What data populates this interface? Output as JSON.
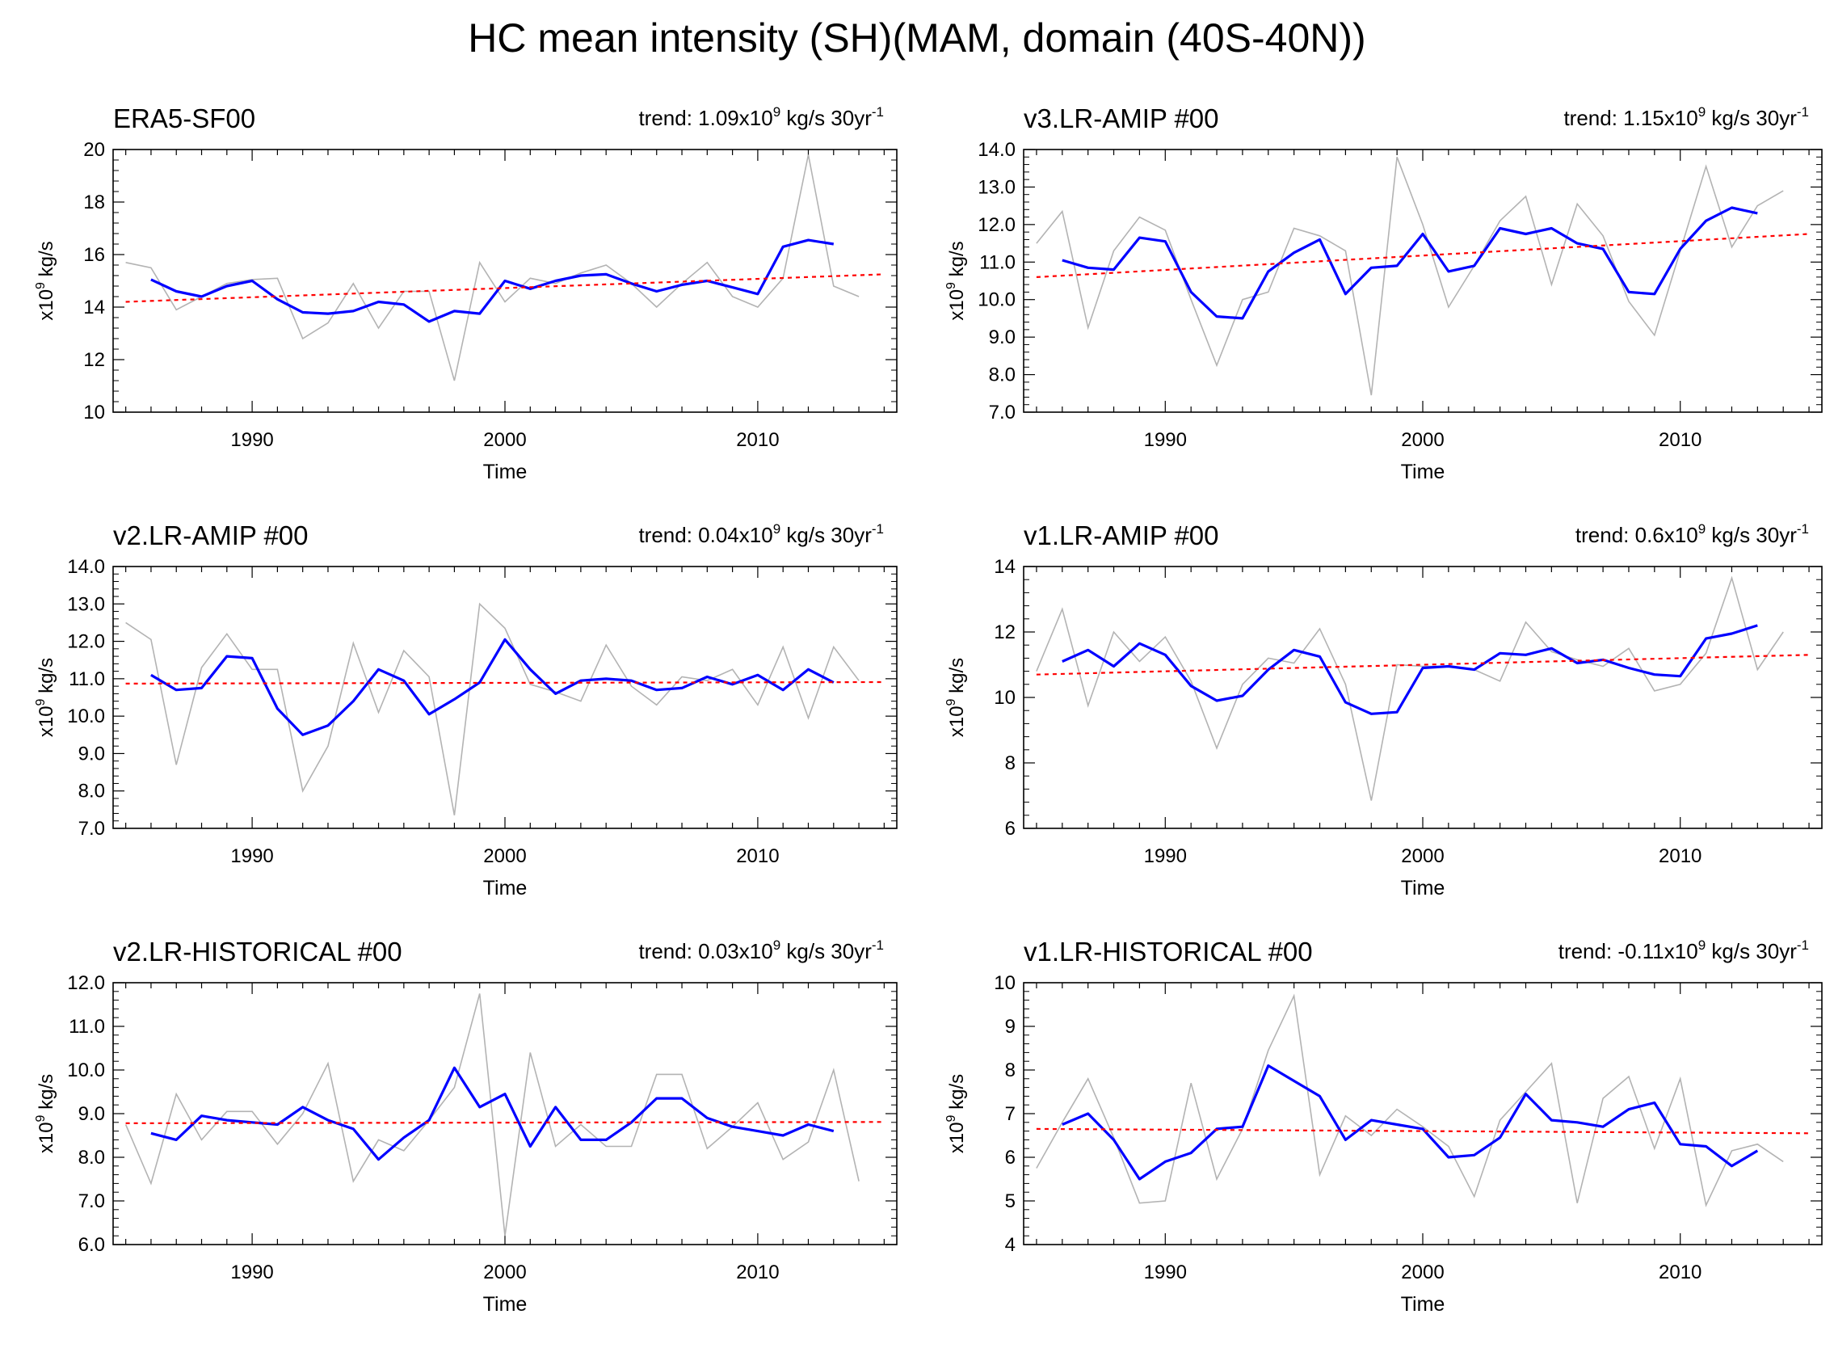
{
  "figure": {
    "title": "HC mean intensity (SH)(MAM, domain (40S-40N))",
    "colors": {
      "raw": "#b3b3b3",
      "smooth": "#0000ff",
      "trend": "#ff0000",
      "axis": "#000000"
    }
  },
  "chart_data": [
    {
      "type": "line",
      "title": "ERA5-SF00",
      "trend_label": "trend: 1.09x10^9 kg/s 30yr^-1",
      "trend_prefix": "trend: 1.09x10",
      "trend_suffix": " kg/s 30yr",
      "xlabel": "Time",
      "ylabel": "x10^9 kg/s",
      "xlim": [
        1984.5,
        2015.5
      ],
      "ylim": [
        10,
        20
      ],
      "x_ticks": [
        1990,
        2000,
        2010
      ],
      "y_ticks": [
        "10",
        "12",
        "14",
        "16",
        "18",
        "20"
      ],
      "series": [
        {
          "name": "raw",
          "x": [
            1985,
            1986,
            1987,
            1988,
            1989,
            1990,
            1991,
            1992,
            1993,
            1994,
            1995,
            1996,
            1997,
            1998,
            1999,
            2000,
            2001,
            2002,
            2003,
            2004,
            2005,
            2006,
            2007,
            2008,
            2009,
            2010,
            2011,
            2012,
            2013,
            2014,
            2015
          ],
          "values": [
            15.7,
            15.5,
            13.9,
            14.4,
            14.9,
            15.05,
            15.1,
            12.8,
            13.4,
            14.9,
            13.2,
            14.6,
            14.6,
            11.2,
            15.7,
            14.2,
            15.1,
            14.9,
            15.3,
            15.6,
            14.9,
            14.0,
            14.9,
            15.7,
            14.4,
            14.0,
            15.1,
            19.8,
            14.8,
            14.4,
            null
          ]
        },
        {
          "name": "smoothed",
          "x": [
            1986,
            1987,
            1988,
            1989,
            1990,
            1991,
            1992,
            1993,
            1994,
            1995,
            1996,
            1997,
            1998,
            1999,
            2000,
            2001,
            2002,
            2003,
            2004,
            2005,
            2006,
            2007,
            2008,
            2009,
            2010,
            2011,
            2012,
            2013,
            2014
          ],
          "values": [
            15.05,
            14.6,
            14.4,
            14.8,
            15.0,
            14.3,
            13.8,
            13.75,
            13.85,
            14.2,
            14.1,
            13.45,
            13.85,
            13.75,
            15.0,
            14.7,
            15.0,
            15.2,
            15.25,
            14.9,
            14.6,
            14.85,
            15.0,
            14.75,
            14.5,
            16.3,
            16.55,
            16.4,
            null
          ]
        },
        {
          "name": "trend",
          "x": [
            1985,
            2015
          ],
          "values": [
            14.2,
            15.25
          ]
        }
      ]
    },
    {
      "type": "line",
      "title": "v3.LR-AMIP  #00",
      "trend_label": "trend: 1.15x10^9 kg/s 30yr^-1",
      "trend_prefix": "trend: 1.15x10",
      "trend_suffix": " kg/s 30yr",
      "xlabel": "Time",
      "ylabel": "x10^9 kg/s",
      "xlim": [
        1984.5,
        2015.5
      ],
      "ylim": [
        7.0,
        14.0
      ],
      "x_ticks": [
        1990,
        2000,
        2010
      ],
      "y_ticks": [
        "7.0",
        "8.0",
        "9.0",
        "10.0",
        "11.0",
        "12.0",
        "13.0",
        "14.0"
      ],
      "series": [
        {
          "name": "raw",
          "x": [
            1985,
            1986,
            1987,
            1988,
            1989,
            1990,
            1991,
            1992,
            1993,
            1994,
            1995,
            1996,
            1997,
            1998,
            1999,
            2000,
            2001,
            2002,
            2003,
            2004,
            2005,
            2006,
            2007,
            2008,
            2009,
            2010,
            2011,
            2012,
            2013,
            2014,
            2015
          ],
          "values": [
            11.5,
            12.35,
            9.25,
            11.3,
            12.2,
            11.85,
            10.0,
            8.25,
            10.0,
            10.2,
            11.9,
            11.7,
            11.3,
            7.45,
            13.8,
            12.0,
            9.8,
            10.9,
            12.1,
            12.75,
            10.4,
            12.55,
            11.7,
            9.95,
            9.05,
            11.3,
            13.55,
            11.4,
            12.5,
            12.9,
            null
          ]
        },
        {
          "name": "smoothed",
          "x": [
            1986,
            1987,
            1988,
            1989,
            1990,
            1991,
            1992,
            1993,
            1994,
            1995,
            1996,
            1997,
            1998,
            1999,
            2000,
            2001,
            2002,
            2003,
            2004,
            2005,
            2006,
            2007,
            2008,
            2009,
            2010,
            2011,
            2012,
            2013,
            2014
          ],
          "values": [
            11.05,
            10.85,
            10.8,
            11.65,
            11.55,
            10.2,
            9.55,
            9.5,
            10.75,
            11.25,
            11.6,
            10.15,
            10.85,
            10.9,
            11.75,
            10.75,
            10.9,
            11.9,
            11.75,
            11.9,
            11.5,
            11.35,
            10.2,
            10.15,
            11.35,
            12.1,
            12.45,
            12.3,
            null
          ]
        },
        {
          "name": "trend",
          "x": [
            1985,
            2015
          ],
          "values": [
            10.6,
            11.75
          ]
        }
      ]
    },
    {
      "type": "line",
      "title": "v2.LR-AMIP  #00",
      "trend_label": "trend: 0.04x10^9 kg/s 30yr^-1",
      "trend_prefix": "trend: 0.04x10",
      "trend_suffix": " kg/s 30yr",
      "xlabel": "Time",
      "ylabel": "x10^9 kg/s",
      "xlim": [
        1984.5,
        2015.5
      ],
      "ylim": [
        7.0,
        14.0
      ],
      "x_ticks": [
        1990,
        2000,
        2010
      ],
      "y_ticks": [
        "7.0",
        "8.0",
        "9.0",
        "10.0",
        "11.0",
        "12.0",
        "13.0",
        "14.0"
      ],
      "series": [
        {
          "name": "raw",
          "x": [
            1985,
            1986,
            1987,
            1988,
            1989,
            1990,
            1991,
            1992,
            1993,
            1994,
            1995,
            1996,
            1997,
            1998,
            1999,
            2000,
            2001,
            2002,
            2003,
            2004,
            2005,
            2006,
            2007,
            2008,
            2009,
            2010,
            2011,
            2012,
            2013,
            2014,
            2015
          ],
          "values": [
            12.5,
            12.05,
            8.7,
            11.3,
            12.2,
            11.25,
            11.25,
            8.0,
            9.2,
            11.95,
            10.1,
            11.75,
            11.05,
            7.35,
            13.0,
            12.35,
            10.85,
            10.65,
            10.4,
            11.9,
            10.8,
            10.3,
            11.05,
            10.95,
            11.25,
            10.3,
            11.85,
            9.95,
            11.85,
            10.95,
            null
          ]
        },
        {
          "name": "smoothed",
          "x": [
            1986,
            1987,
            1988,
            1989,
            1990,
            1991,
            1992,
            1993,
            1994,
            1995,
            1996,
            1997,
            1998,
            1999,
            2000,
            2001,
            2002,
            2003,
            2004,
            2005,
            2006,
            2007,
            2008,
            2009,
            2010,
            2011,
            2012,
            2013,
            2014
          ],
          "values": [
            11.1,
            10.7,
            10.75,
            11.6,
            11.55,
            10.2,
            9.5,
            9.75,
            10.4,
            11.25,
            10.95,
            10.05,
            10.45,
            10.9,
            12.05,
            11.25,
            10.6,
            10.95,
            11.0,
            10.95,
            10.7,
            10.75,
            11.05,
            10.85,
            11.1,
            10.7,
            11.25,
            10.9,
            null
          ]
        },
        {
          "name": "trend",
          "x": [
            1985,
            2015
          ],
          "values": [
            10.87,
            10.91
          ]
        }
      ]
    },
    {
      "type": "line",
      "title": "v1.LR-AMIP  #00",
      "trend_label": "trend: 0.6x10^9 kg/s 30yr^-1",
      "trend_prefix": "trend: 0.6x10",
      "trend_suffix": " kg/s 30yr",
      "xlabel": "Time",
      "ylabel": "x10^9 kg/s",
      "xlim": [
        1984.5,
        2015.5
      ],
      "ylim": [
        6,
        14
      ],
      "x_ticks": [
        1990,
        2000,
        2010
      ],
      "y_ticks": [
        "6",
        "8",
        "10",
        "12",
        "14"
      ],
      "series": [
        {
          "name": "raw",
          "x": [
            1985,
            1986,
            1987,
            1988,
            1989,
            1990,
            1991,
            1992,
            1993,
            1994,
            1995,
            1996,
            1997,
            1998,
            1999,
            2000,
            2001,
            2002,
            2003,
            2004,
            2005,
            2006,
            2007,
            2008,
            2009,
            2010,
            2011,
            2012,
            2013,
            2014,
            2015
          ],
          "values": [
            10.8,
            12.7,
            9.75,
            12.0,
            11.1,
            11.85,
            10.5,
            8.45,
            10.4,
            11.2,
            11.05,
            12.1,
            10.4,
            6.85,
            11.0,
            10.95,
            10.95,
            10.85,
            10.5,
            12.3,
            11.4,
            11.15,
            10.95,
            11.5,
            10.2,
            10.4,
            11.35,
            13.65,
            10.85,
            12.0,
            null
          ]
        },
        {
          "name": "smoothed",
          "x": [
            1986,
            1987,
            1988,
            1989,
            1990,
            1991,
            1992,
            1993,
            1994,
            1995,
            1996,
            1997,
            1998,
            1999,
            2000,
            2001,
            2002,
            2003,
            2004,
            2005,
            2006,
            2007,
            2008,
            2009,
            2010,
            2011,
            2012,
            2013,
            2014
          ],
          "values": [
            11.1,
            11.45,
            10.95,
            11.65,
            11.3,
            10.35,
            9.9,
            10.05,
            10.85,
            11.45,
            11.25,
            9.85,
            9.5,
            9.55,
            10.9,
            10.95,
            10.85,
            11.35,
            11.3,
            11.5,
            11.05,
            11.15,
            10.9,
            10.7,
            10.65,
            11.8,
            11.95,
            12.2,
            null
          ]
        },
        {
          "name": "trend",
          "x": [
            1985,
            2015
          ],
          "values": [
            10.7,
            11.3
          ]
        }
      ]
    },
    {
      "type": "line",
      "title": "v2.LR-HISTORICAL  #00",
      "trend_label": "trend: 0.03x10^9 kg/s 30yr^-1",
      "trend_prefix": "trend: 0.03x10",
      "trend_suffix": " kg/s 30yr",
      "xlabel": "Time",
      "ylabel": "x10^9 kg/s",
      "xlim": [
        1984.5,
        2015.5
      ],
      "ylim": [
        6.0,
        12.0
      ],
      "x_ticks": [
        1990,
        2000,
        2010
      ],
      "y_ticks": [
        "6.0",
        "7.0",
        "8.0",
        "9.0",
        "10.0",
        "11.0",
        "12.0"
      ],
      "series": [
        {
          "name": "raw",
          "x": [
            1985,
            1986,
            1987,
            1988,
            1989,
            1990,
            1991,
            1992,
            1993,
            1994,
            1995,
            1996,
            1997,
            1998,
            1999,
            2000,
            2001,
            2002,
            2003,
            2004,
            2005,
            2006,
            2007,
            2008,
            2009,
            2010,
            2011,
            2012,
            2013,
            2014,
            2015
          ],
          "values": [
            8.75,
            7.4,
            9.45,
            8.4,
            9.05,
            9.05,
            8.3,
            9.0,
            10.15,
            7.45,
            8.4,
            8.15,
            8.85,
            9.6,
            11.75,
            6.2,
            10.4,
            8.25,
            8.75,
            8.25,
            8.25,
            9.9,
            9.9,
            8.2,
            8.7,
            9.25,
            7.95,
            8.35,
            10.0,
            7.45,
            null
          ]
        },
        {
          "name": "smoothed",
          "x": [
            1986,
            1987,
            1988,
            1989,
            1990,
            1991,
            1992,
            1993,
            1994,
            1995,
            1996,
            1997,
            1998,
            1999,
            2000,
            2001,
            2002,
            2003,
            2004,
            2005,
            2006,
            2007,
            2008,
            2009,
            2010,
            2011,
            2012,
            2013,
            2014
          ],
          "values": [
            8.55,
            8.4,
            8.95,
            8.85,
            8.8,
            8.75,
            9.15,
            8.85,
            8.65,
            7.95,
            8.45,
            8.85,
            10.05,
            9.15,
            9.45,
            8.25,
            9.15,
            8.4,
            8.4,
            8.8,
            9.35,
            9.35,
            8.9,
            8.7,
            8.6,
            8.5,
            8.75,
            8.6,
            null
          ]
        },
        {
          "name": "trend",
          "x": [
            1985,
            2015
          ],
          "values": [
            8.78,
            8.81
          ]
        }
      ]
    },
    {
      "type": "line",
      "title": "v1.LR-HISTORICAL  #00",
      "trend_label": "trend: -0.11x10^9 kg/s 30yr^-1",
      "trend_prefix": "trend: -0.11x10",
      "trend_suffix": " kg/s 30yr",
      "xlabel": "Time",
      "ylabel": "x10^9 kg/s",
      "xlim": [
        1984.5,
        2015.5
      ],
      "ylim": [
        4,
        10
      ],
      "x_ticks": [
        1990,
        2000,
        2010
      ],
      "y_ticks": [
        "4",
        "5",
        "6",
        "7",
        "8",
        "9",
        "10"
      ],
      "series": [
        {
          "name": "raw",
          "x": [
            1985,
            1986,
            1987,
            1988,
            1989,
            1990,
            1991,
            1992,
            1993,
            1994,
            1995,
            1996,
            1997,
            1998,
            1999,
            2000,
            2001,
            2002,
            2003,
            2004,
            2005,
            2006,
            2007,
            2008,
            2009,
            2010,
            2011,
            2012,
            2013,
            2014,
            2015
          ],
          "values": [
            5.75,
            6.8,
            7.8,
            6.45,
            4.95,
            5.0,
            7.7,
            5.5,
            6.65,
            8.45,
            9.7,
            5.6,
            6.95,
            6.5,
            7.1,
            6.7,
            6.25,
            5.1,
            6.85,
            7.5,
            8.15,
            4.95,
            7.35,
            7.85,
            6.2,
            7.8,
            4.9,
            6.15,
            6.3,
            5.9,
            null
          ]
        },
        {
          "name": "smoothed",
          "x": [
            1986,
            1987,
            1988,
            1989,
            1990,
            1991,
            1992,
            1993,
            1994,
            1995,
            1996,
            1997,
            1998,
            1999,
            2000,
            2001,
            2002,
            2003,
            2004,
            2005,
            2006,
            2007,
            2008,
            2009,
            2010,
            2011,
            2012,
            2013,
            2014
          ],
          "values": [
            6.75,
            7.0,
            6.4,
            5.5,
            5.9,
            6.1,
            6.65,
            6.7,
            8.1,
            7.75,
            7.4,
            6.4,
            6.85,
            6.75,
            6.65,
            6.0,
            6.05,
            6.45,
            7.45,
            6.85,
            6.8,
            6.7,
            7.1,
            7.25,
            6.3,
            6.25,
            5.8,
            6.15,
            null
          ]
        },
        {
          "name": "trend",
          "x": [
            1985,
            2015
          ],
          "values": [
            6.65,
            6.55
          ]
        }
      ]
    }
  ]
}
